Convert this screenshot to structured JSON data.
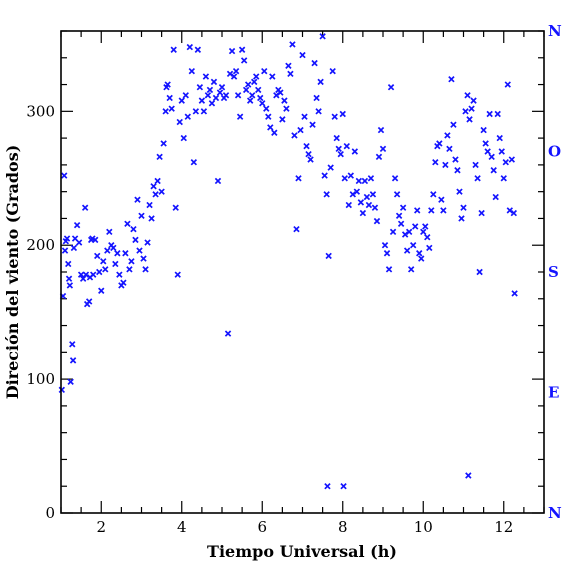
{
  "chart_data": {
    "type": "scatter",
    "title": "",
    "xlabel": "Tiempo Universal (h)",
    "ylabel": "Direción del viento (Grados)",
    "xlim": [
      1.0,
      13.0
    ],
    "ylim": [
      0,
      360
    ],
    "xticks": [
      2,
      4,
      6,
      8,
      10,
      12
    ],
    "yticks": [
      0,
      100,
      200,
      300
    ],
    "x_minor_step": 0.5,
    "y_minor_step": 20,
    "grid": false,
    "marker": "x",
    "marker_color": "#1414ff",
    "right_axis_labels": [
      {
        "value": 0,
        "label": "N"
      },
      {
        "value": 90,
        "label": "E"
      },
      {
        "value": 180,
        "label": "S"
      },
      {
        "value": 270,
        "label": "O"
      },
      {
        "value": 360,
        "label": "N"
      }
    ],
    "series": [
      {
        "points": [
          [
            1.02,
            92
          ],
          [
            1.05,
            162
          ],
          [
            1.08,
            252
          ],
          [
            1.1,
            196
          ],
          [
            1.12,
            203
          ],
          [
            1.15,
            205
          ],
          [
            1.18,
            186
          ],
          [
            1.2,
            175
          ],
          [
            1.22,
            170
          ],
          [
            1.24,
            98
          ],
          [
            1.28,
            126
          ],
          [
            1.3,
            114
          ],
          [
            1.32,
            198
          ],
          [
            1.35,
            205
          ],
          [
            1.4,
            215
          ],
          [
            1.45,
            202
          ],
          [
            1.5,
            178
          ],
          [
            1.55,
            175
          ],
          [
            1.6,
            228
          ],
          [
            1.62,
            178
          ],
          [
            1.65,
            156
          ],
          [
            1.7,
            158
          ],
          [
            1.72,
            176
          ],
          [
            1.75,
            204
          ],
          [
            1.78,
            205
          ],
          [
            1.8,
            178
          ],
          [
            1.85,
            204
          ],
          [
            1.9,
            192
          ],
          [
            1.95,
            180
          ],
          [
            2.0,
            166
          ],
          [
            2.05,
            188
          ],
          [
            2.1,
            182
          ],
          [
            2.15,
            196
          ],
          [
            2.2,
            210
          ],
          [
            2.25,
            200
          ],
          [
            2.3,
            198
          ],
          [
            2.35,
            186
          ],
          [
            2.4,
            194
          ],
          [
            2.45,
            178
          ],
          [
            2.5,
            170
          ],
          [
            2.55,
            172
          ],
          [
            2.6,
            194
          ],
          [
            2.65,
            216
          ],
          [
            2.7,
            182
          ],
          [
            2.75,
            188
          ],
          [
            2.8,
            212
          ],
          [
            2.85,
            204
          ],
          [
            2.9,
            234
          ],
          [
            2.95,
            196
          ],
          [
            3.0,
            222
          ],
          [
            3.05,
            190
          ],
          [
            3.1,
            182
          ],
          [
            3.15,
            202
          ],
          [
            3.2,
            230
          ],
          [
            3.25,
            220
          ],
          [
            3.3,
            244
          ],
          [
            3.35,
            238
          ],
          [
            3.4,
            248
          ],
          [
            3.45,
            266
          ],
          [
            3.5,
            240
          ],
          [
            3.55,
            276
          ],
          [
            3.6,
            300
          ],
          [
            3.62,
            318
          ],
          [
            3.65,
            320
          ],
          [
            3.7,
            310
          ],
          [
            3.75,
            302
          ],
          [
            3.8,
            346
          ],
          [
            3.85,
            228
          ],
          [
            3.9,
            178
          ],
          [
            3.95,
            292
          ],
          [
            4.0,
            308
          ],
          [
            4.05,
            280
          ],
          [
            4.1,
            312
          ],
          [
            4.15,
            296
          ],
          [
            4.2,
            348
          ],
          [
            4.25,
            330
          ],
          [
            4.3,
            262
          ],
          [
            4.35,
            300
          ],
          [
            4.4,
            346
          ],
          [
            4.45,
            318
          ],
          [
            4.5,
            308
          ],
          [
            4.55,
            300
          ],
          [
            4.6,
            326
          ],
          [
            4.65,
            312
          ],
          [
            4.7,
            316
          ],
          [
            4.75,
            306
          ],
          [
            4.8,
            322
          ],
          [
            4.85,
            310
          ],
          [
            4.9,
            248
          ],
          [
            4.95,
            314
          ],
          [
            5.0,
            318
          ],
          [
            5.05,
            310
          ],
          [
            5.1,
            312
          ],
          [
            5.15,
            134
          ],
          [
            5.2,
            328
          ],
          [
            5.25,
            345
          ],
          [
            5.3,
            326
          ],
          [
            5.35,
            330
          ],
          [
            5.4,
            312
          ],
          [
            5.45,
            296
          ],
          [
            5.5,
            346
          ],
          [
            5.55,
            338
          ],
          [
            5.6,
            316
          ],
          [
            5.65,
            320
          ],
          [
            5.7,
            308
          ],
          [
            5.75,
            312
          ],
          [
            5.8,
            322
          ],
          [
            5.85,
            326
          ],
          [
            5.9,
            316
          ],
          [
            5.95,
            310
          ],
          [
            6.0,
            306
          ],
          [
            6.05,
            330
          ],
          [
            6.1,
            302
          ],
          [
            6.15,
            296
          ],
          [
            6.2,
            288
          ],
          [
            6.25,
            326
          ],
          [
            6.3,
            284
          ],
          [
            6.35,
            312
          ],
          [
            6.4,
            316
          ],
          [
            6.45,
            314
          ],
          [
            6.5,
            294
          ],
          [
            6.55,
            308
          ],
          [
            6.6,
            302
          ],
          [
            6.65,
            334
          ],
          [
            6.7,
            328
          ],
          [
            6.75,
            350
          ],
          [
            6.8,
            282
          ],
          [
            6.85,
            212
          ],
          [
            6.9,
            250
          ],
          [
            6.95,
            286
          ],
          [
            7.0,
            342
          ],
          [
            7.05,
            296
          ],
          [
            7.1,
            274
          ],
          [
            7.15,
            268
          ],
          [
            7.2,
            264
          ],
          [
            7.25,
            290
          ],
          [
            7.3,
            336
          ],
          [
            7.35,
            310
          ],
          [
            7.4,
            300
          ],
          [
            7.45,
            322
          ],
          [
            7.5,
            356
          ],
          [
            7.55,
            252
          ],
          [
            7.6,
            238
          ],
          [
            7.62,
            20
          ],
          [
            7.65,
            192
          ],
          [
            7.7,
            258
          ],
          [
            7.75,
            330
          ],
          [
            7.8,
            296
          ],
          [
            7.85,
            280
          ],
          [
            7.9,
            272
          ],
          [
            7.95,
            268
          ],
          [
            8.0,
            298
          ],
          [
            8.02,
            20
          ],
          [
            8.05,
            250
          ],
          [
            8.1,
            274
          ],
          [
            8.15,
            230
          ],
          [
            8.2,
            252
          ],
          [
            8.25,
            238
          ],
          [
            8.3,
            270
          ],
          [
            8.35,
            240
          ],
          [
            8.4,
            248
          ],
          [
            8.45,
            232
          ],
          [
            8.5,
            224
          ],
          [
            8.55,
            248
          ],
          [
            8.6,
            236
          ],
          [
            8.65,
            230
          ],
          [
            8.7,
            250
          ],
          [
            8.75,
            238
          ],
          [
            8.8,
            228
          ],
          [
            8.85,
            218
          ],
          [
            8.9,
            266
          ],
          [
            8.95,
            286
          ],
          [
            9.0,
            272
          ],
          [
            9.05,
            200
          ],
          [
            9.1,
            194
          ],
          [
            9.15,
            182
          ],
          [
            9.2,
            318
          ],
          [
            9.25,
            210
          ],
          [
            9.3,
            250
          ],
          [
            9.35,
            238
          ],
          [
            9.4,
            222
          ],
          [
            9.45,
            216
          ],
          [
            9.5,
            228
          ],
          [
            9.55,
            208
          ],
          [
            9.6,
            196
          ],
          [
            9.65,
            210
          ],
          [
            9.7,
            182
          ],
          [
            9.75,
            200
          ],
          [
            9.8,
            214
          ],
          [
            9.85,
            226
          ],
          [
            9.9,
            194
          ],
          [
            9.95,
            190
          ],
          [
            10.0,
            210
          ],
          [
            10.05,
            214
          ],
          [
            10.1,
            206
          ],
          [
            10.15,
            198
          ],
          [
            10.2,
            226
          ],
          [
            10.25,
            238
          ],
          [
            10.3,
            262
          ],
          [
            10.35,
            274
          ],
          [
            10.4,
            276
          ],
          [
            10.45,
            234
          ],
          [
            10.5,
            226
          ],
          [
            10.55,
            260
          ],
          [
            10.6,
            282
          ],
          [
            10.65,
            272
          ],
          [
            10.7,
            324
          ],
          [
            10.75,
            290
          ],
          [
            10.8,
            264
          ],
          [
            10.85,
            256
          ],
          [
            10.9,
            240
          ],
          [
            10.95,
            220
          ],
          [
            11.0,
            228
          ],
          [
            11.05,
            300
          ],
          [
            11.1,
            312
          ],
          [
            11.12,
            28
          ],
          [
            11.15,
            294
          ],
          [
            11.2,
            302
          ],
          [
            11.25,
            308
          ],
          [
            11.3,
            260
          ],
          [
            11.35,
            250
          ],
          [
            11.4,
            180
          ],
          [
            11.45,
            224
          ],
          [
            11.5,
            286
          ],
          [
            11.55,
            276
          ],
          [
            11.6,
            270
          ],
          [
            11.65,
            298
          ],
          [
            11.7,
            266
          ],
          [
            11.75,
            256
          ],
          [
            11.8,
            236
          ],
          [
            11.85,
            298
          ],
          [
            11.9,
            280
          ],
          [
            11.95,
            270
          ],
          [
            12.0,
            250
          ],
          [
            12.05,
            262
          ],
          [
            12.1,
            320
          ],
          [
            12.15,
            226
          ],
          [
            12.2,
            264
          ],
          [
            12.25,
            224
          ],
          [
            12.27,
            164
          ]
        ]
      }
    ]
  }
}
